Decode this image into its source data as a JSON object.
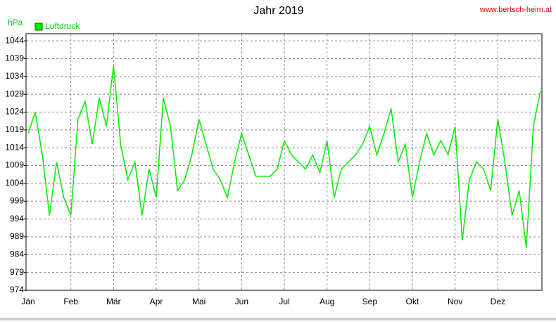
{
  "chart_data": {
    "type": "line",
    "title": "Jahr 2019",
    "source": "www.bertsch-heim.at",
    "y_label": "hPa",
    "categories": [
      "Jän",
      null,
      null,
      null,
      null,
      null,
      "Feb",
      null,
      null,
      null,
      null,
      null,
      "Mär",
      null,
      null,
      null,
      null,
      null,
      "Apr",
      null,
      null,
      null,
      null,
      null,
      "Mai",
      null,
      null,
      null,
      null,
      null,
      "Jun",
      null,
      null,
      null,
      null,
      null,
      "Jul",
      null,
      null,
      null,
      null,
      null,
      "Aug",
      null,
      null,
      null,
      null,
      null,
      "Sep",
      null,
      null,
      null,
      null,
      null,
      "Okt",
      null,
      null,
      null,
      null,
      null,
      "Nov",
      null,
      null,
      null,
      null,
      null,
      "Dez",
      null,
      null,
      null,
      null,
      null,
      null
    ],
    "series": [
      {
        "name": "Luftdruck",
        "color": "#00ee00",
        "values": [
          1018,
          1024,
          1012,
          995,
          1010,
          1000,
          995,
          1022,
          1027,
          1015,
          1028,
          1020,
          1037,
          1015,
          1005,
          1010,
          995,
          1008,
          1000,
          1028,
          1020,
          1002,
          1005,
          1012,
          1022,
          1015,
          1008,
          1005,
          1000,
          1010,
          1018,
          1012,
          1006,
          1006,
          1006,
          1008,
          1016,
          1012,
          1010,
          1008,
          1012,
          1007,
          1016,
          1000,
          1008,
          1010,
          1012,
          1015,
          1020,
          1012,
          1018,
          1025,
          1010,
          1015,
          1000,
          1010,
          1018,
          1012,
          1016,
          1012,
          1020,
          988,
          1005,
          1010,
          1008,
          1002,
          1022,
          1010,
          995,
          1002,
          986,
          1020,
          1030
        ]
      }
    ],
    "ylim": [
      974,
      1046
    ],
    "yticks": [
      974,
      979,
      984,
      989,
      994,
      999,
      1004,
      1009,
      1014,
      1019,
      1024,
      1029,
      1034,
      1039,
      1044
    ],
    "grid": true
  }
}
